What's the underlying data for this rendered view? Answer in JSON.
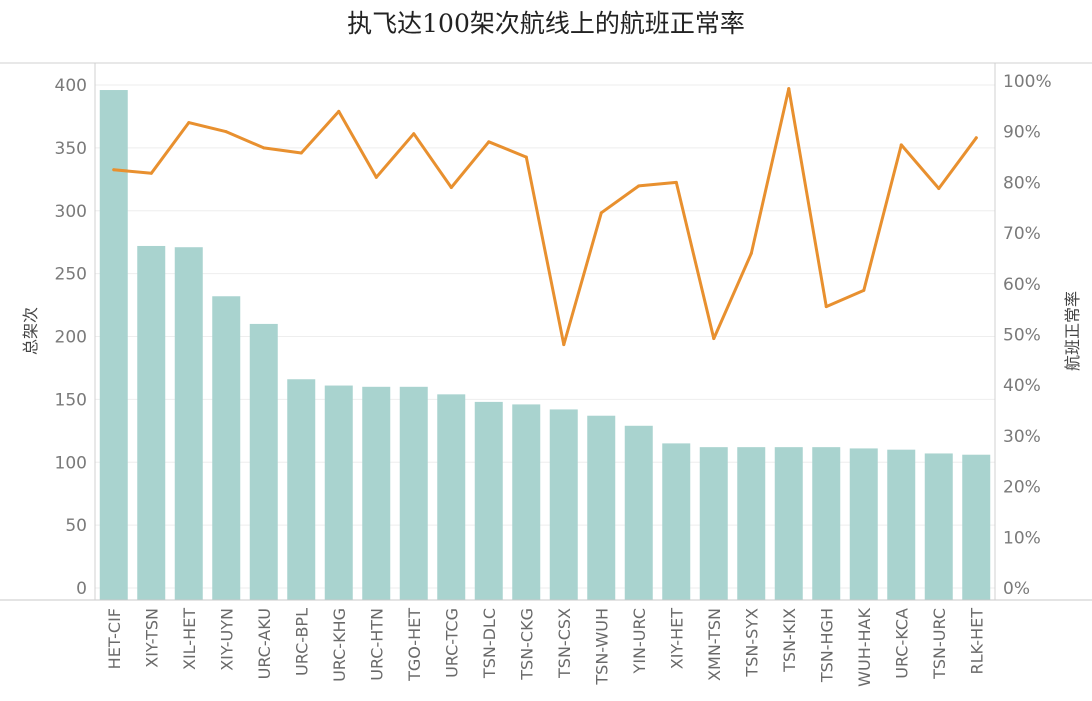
{
  "chart_data": {
    "type": "bar+line",
    "title": "执飞达100架次航线上的航班正常率",
    "categories": [
      "HET-CIF",
      "XIY-TSN",
      "XIL-HET",
      "XIY-UYN",
      "URC-AKU",
      "URC-BPL",
      "URC-KHG",
      "URC-HTN",
      "TGO-HET",
      "URC-TCG",
      "TSN-DLC",
      "TSN-CKG",
      "TSN-CSX",
      "TSN-WUH",
      "YIN-URC",
      "XIY-HET",
      "XMN-TSN",
      "TSN-SYX",
      "TSN-KIX",
      "TSN-HGH",
      "WUH-HAK",
      "URC-KCA",
      "TSN-URC",
      "RLK-HET"
    ],
    "series": [
      {
        "axis": "left",
        "type": "bar",
        "color": "#a9d3cf",
        "values": [
          396,
          272,
          271,
          232,
          210,
          166,
          161,
          160,
          160,
          154,
          148,
          146,
          142,
          137,
          129,
          115,
          112,
          112,
          112,
          112,
          111,
          110,
          107,
          106
        ]
      },
      {
        "axis": "right",
        "type": "line",
        "color": "#e8902f",
        "values": [
          0.825,
          0.818,
          0.918,
          0.9,
          0.868,
          0.858,
          0.94,
          0.81,
          0.896,
          0.79,
          0.88,
          0.85,
          0.48,
          0.74,
          0.793,
          0.8,
          0.492,
          0.66,
          0.985,
          0.555,
          0.587,
          0.874,
          0.788,
          0.888
        ]
      }
    ],
    "ylabel": "总架次",
    "y2label": "航班正常率",
    "ylim": [
      0,
      400
    ],
    "yticks": [
      "0",
      "50",
      "100",
      "150",
      "200",
      "250",
      "300",
      "350",
      "400"
    ],
    "y2lim": [
      0,
      1.0
    ],
    "y2ticks": [
      "0%",
      "10%",
      "20%",
      "30%",
      "40%",
      "50%",
      "60%",
      "70%",
      "80%",
      "90%",
      "100%"
    ],
    "grid": true
  }
}
